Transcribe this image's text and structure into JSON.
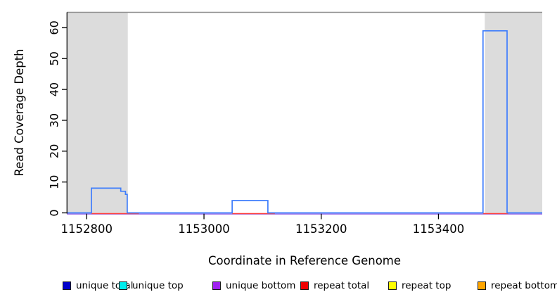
{
  "chart_data": {
    "type": "line",
    "title": "",
    "xlabel": "Coordinate in Reference Genome",
    "ylabel": "Read Coverage Depth",
    "xlim": [
      1152766,
      1153577
    ],
    "ylim": [
      0,
      65
    ],
    "x_ticks": [
      1152800,
      1153000,
      1153200,
      1153400
    ],
    "y_ticks": [
      0,
      10,
      20,
      30,
      40,
      50,
      60
    ],
    "grid": false,
    "boundary_line_y": 65,
    "boundary_line_color": "#8c8c8c",
    "repeat_regions": {
      "color": "#dcdcdc",
      "ranges": [
        [
          1152768,
          1152870
        ],
        [
          1153479,
          1153577
        ]
      ]
    },
    "series": [
      {
        "name": "unique total",
        "plot_color": "#3e7dfc",
        "type": "step",
        "points": [
          [
            1152766,
            0
          ],
          [
            1152808,
            0
          ],
          [
            1152808,
            8
          ],
          [
            1152858,
            8
          ],
          [
            1152858,
            7
          ],
          [
            1152866,
            7
          ],
          [
            1152866,
            6
          ],
          [
            1152869,
            6
          ],
          [
            1152869,
            0
          ],
          [
            1153048,
            0
          ],
          [
            1153048,
            4
          ],
          [
            1153109,
            4
          ],
          [
            1153109,
            0
          ],
          [
            1153476,
            0
          ],
          [
            1153476,
            59
          ],
          [
            1153517,
            59
          ],
          [
            1153517,
            0
          ],
          [
            1153577,
            0
          ]
        ]
      },
      {
        "name": "unique bottom",
        "plot_color": "#9a6ae8",
        "type": "segments",
        "y": 0,
        "segments": [
          [
            1152766,
            1153577
          ]
        ]
      },
      {
        "name": "repeat total",
        "plot_color": "#ff4040",
        "type": "segments",
        "y": 0,
        "segments": [
          [
            1152808,
            1152889
          ],
          [
            1153048,
            1153121
          ],
          [
            1153476,
            1153519
          ]
        ]
      }
    ],
    "legend_position": "bottom"
  },
  "legend": {
    "items": [
      {
        "label": "unique total",
        "color": "#0000cc"
      },
      {
        "label": "unique top",
        "color": "#00eeee"
      },
      {
        "label": "unique bottom",
        "color": "#a020f0"
      },
      {
        "label": "repeat total",
        "color": "#ee0000"
      },
      {
        "label": "repeat top",
        "color": "#ffff00"
      },
      {
        "label": "repeat bottom",
        "color": "#ffa500"
      }
    ]
  }
}
